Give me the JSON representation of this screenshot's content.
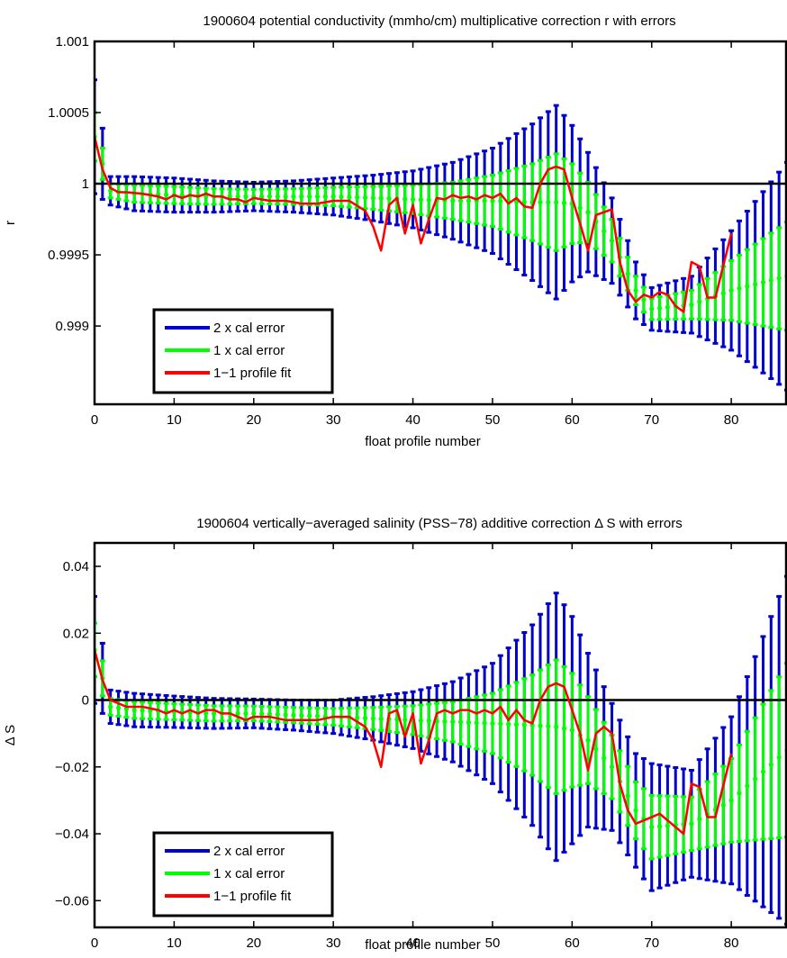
{
  "chart_data": [
    {
      "type": "line",
      "title": "1900604 potential conductivity (mmho/cm) multiplicative correction r with errors",
      "xlabel": "float profile number",
      "ylabel": "r",
      "xlim": [
        0,
        87
      ],
      "ylim": [
        0.99845,
        1.001
      ],
      "xticks": [
        0,
        10,
        20,
        30,
        40,
        50,
        60,
        70,
        80
      ],
      "yticks": [
        0.999,
        0.9995,
        1,
        1.0005,
        1.001
      ],
      "ytick_labels": [
        "0.999",
        "0.9995",
        "1",
        "1.0005",
        "1.001"
      ],
      "reference_line": 1,
      "legend_position": "bottom-left",
      "legend": [
        "2 x cal error",
        "1 x cal error",
        "1−1 profile fit"
      ],
      "fit_color": "#ff0000",
      "err2_color": "#0000cc",
      "err1_color": "#00ff00",
      "error_model": {
        "x": [
          0,
          2,
          5,
          10,
          15,
          20,
          25,
          30,
          35,
          40,
          45,
          50,
          55,
          58,
          60,
          62,
          65,
          68,
          70,
          75,
          80,
          87
        ],
        "center": [
          1.00033,
          0.99995,
          0.99993,
          0.99992,
          0.99991,
          0.99991,
          0.99991,
          0.99991,
          0.9999,
          0.99989,
          0.99988,
          0.99988,
          0.99987,
          0.99987,
          0.99986,
          0.9998,
          0.9996,
          0.99925,
          0.99912,
          0.99915,
          0.99925,
          0.99935
        ],
        "err2": [
          0.0004,
          0.0001,
          0.00012,
          0.00012,
          0.00011,
          0.0001,
          0.00011,
          0.00013,
          0.00016,
          0.0002,
          0.00027,
          0.00037,
          0.00055,
          0.00068,
          0.00055,
          0.00042,
          0.0003,
          0.0002,
          0.00015,
          0.0002,
          0.00042,
          0.0008
        ],
        "err1": [
          0.00017,
          5e-05,
          6e-05,
          6e-05,
          5.5e-05,
          5e-05,
          5.5e-05,
          6.5e-05,
          8e-05,
          0.0001,
          0.00013,
          0.00018,
          0.00027,
          0.00034,
          0.00028,
          0.00021,
          0.00015,
          0.0001,
          7.5e-05,
          0.0001,
          0.00021,
          0.00038
        ]
      },
      "fit": {
        "x": [
          0,
          1,
          2,
          3,
          4,
          6,
          8,
          9,
          10,
          11,
          12,
          13,
          14,
          15,
          16,
          17,
          18,
          19,
          20,
          22,
          24,
          26,
          28,
          30,
          32,
          34,
          35,
          36,
          37,
          38,
          39,
          40,
          41,
          42,
          43,
          44,
          45,
          46,
          47,
          48,
          49,
          50,
          51,
          52,
          53,
          54,
          55,
          56,
          57,
          58,
          59,
          60,
          61,
          62,
          63,
          64,
          65,
          66,
          67,
          68,
          69,
          70,
          71,
          72,
          73,
          74,
          75,
          76,
          77,
          78,
          80
        ],
        "y": [
          1.00033,
          1.0001,
          0.99997,
          0.99994,
          0.99994,
          0.99993,
          0.99991,
          0.99989,
          0.99992,
          0.9999,
          0.99992,
          0.99991,
          0.99993,
          0.99991,
          0.99991,
          0.99989,
          0.99989,
          0.99987,
          0.9999,
          0.99988,
          0.99988,
          0.99986,
          0.99986,
          0.99988,
          0.99988,
          0.99981,
          0.9997,
          0.99953,
          0.99985,
          0.9999,
          0.99965,
          0.99985,
          0.99958,
          0.99975,
          0.9999,
          0.99989,
          0.99992,
          0.9999,
          0.99991,
          0.99989,
          0.99992,
          0.9999,
          0.99993,
          0.99986,
          0.9999,
          0.99984,
          0.99983,
          1.0,
          1.0001,
          1.00012,
          1.0001,
          0.9999,
          0.99972,
          0.99953,
          0.99978,
          0.9998,
          0.99982,
          0.99945,
          0.99925,
          0.99917,
          0.99922,
          0.9992,
          0.99924,
          0.99922,
          0.99914,
          0.9991,
          0.99945,
          0.99942,
          0.9992,
          0.9992,
          0.99965
        ]
      }
    },
    {
      "type": "line",
      "title": "1900604 vertically−averaged salinity (PSS−78) additive correction Δ S with errors",
      "xlabel": "float profile number",
      "ylabel": "Δ S",
      "xlim": [
        0,
        87
      ],
      "ylim": [
        -0.068,
        0.047
      ],
      "xticks": [
        0,
        10,
        20,
        30,
        40,
        50,
        60,
        70,
        80
      ],
      "yticks": [
        -0.06,
        -0.04,
        -0.02,
        0,
        0.02,
        0.04
      ],
      "ytick_labels": [
        "−0.06",
        "−0.04",
        "−0.02",
        "0",
        "0.02",
        "0.04"
      ],
      "reference_line": 0,
      "legend_position": "bottom-left",
      "legend": [
        "2 x cal error",
        "1 x cal error",
        "1−1 profile fit"
      ],
      "fit_color": "#ff0000",
      "err2_color": "#0000cc",
      "err1_color": "#00ff00",
      "error_model": {
        "x": [
          0,
          2,
          5,
          10,
          15,
          20,
          25,
          30,
          35,
          40,
          45,
          50,
          55,
          58,
          60,
          62,
          65,
          68,
          70,
          75,
          80,
          87
        ],
        "center": [
          0.015,
          -0.002,
          -0.003,
          -0.0035,
          -0.004,
          -0.004,
          -0.0045,
          -0.005,
          -0.0055,
          -0.006,
          -0.0065,
          -0.007,
          -0.0075,
          -0.008,
          -0.009,
          -0.012,
          -0.02,
          -0.033,
          -0.038,
          -0.037,
          -0.03,
          -0.015
        ],
        "err2": [
          0.016,
          0.005,
          0.005,
          0.0047,
          0.0045,
          0.0043,
          0.0045,
          0.005,
          0.0065,
          0.0085,
          0.012,
          0.018,
          0.03,
          0.04,
          0.034,
          0.026,
          0.019,
          0.017,
          0.019,
          0.016,
          0.025,
          0.052
        ],
        "err1": [
          0.008,
          0.0025,
          0.0025,
          0.0024,
          0.0023,
          0.0022,
          0.0023,
          0.0025,
          0.0033,
          0.0043,
          0.006,
          0.009,
          0.015,
          0.02,
          0.017,
          0.013,
          0.0095,
          0.0085,
          0.0095,
          0.008,
          0.0125,
          0.026
        ]
      },
      "fit": {
        "x": [
          0,
          1,
          2,
          3,
          4,
          6,
          8,
          9,
          10,
          11,
          12,
          13,
          14,
          15,
          16,
          17,
          18,
          19,
          20,
          22,
          24,
          26,
          28,
          30,
          32,
          34,
          35,
          36,
          37,
          38,
          39,
          40,
          41,
          42,
          43,
          44,
          45,
          46,
          47,
          48,
          49,
          50,
          51,
          52,
          53,
          54,
          55,
          56,
          57,
          58,
          59,
          60,
          61,
          62,
          63,
          64,
          65,
          66,
          67,
          68,
          69,
          70,
          71,
          72,
          73,
          74,
          75,
          76,
          77,
          78,
          80
        ],
        "y": [
          0.015,
          0.006,
          0.0,
          -0.001,
          -0.002,
          -0.002,
          -0.003,
          -0.004,
          -0.003,
          -0.004,
          -0.003,
          -0.004,
          -0.003,
          -0.003,
          -0.004,
          -0.004,
          -0.005,
          -0.006,
          -0.005,
          -0.005,
          -0.006,
          -0.006,
          -0.006,
          -0.005,
          -0.005,
          -0.008,
          -0.012,
          -0.02,
          -0.004,
          -0.003,
          -0.011,
          -0.004,
          -0.019,
          -0.012,
          -0.004,
          -0.003,
          -0.004,
          -0.003,
          -0.003,
          -0.004,
          -0.003,
          -0.004,
          -0.002,
          -0.006,
          -0.003,
          -0.006,
          -0.007,
          0.0,
          0.004,
          0.005,
          0.004,
          -0.003,
          -0.01,
          -0.021,
          -0.01,
          -0.008,
          -0.01,
          -0.025,
          -0.033,
          -0.037,
          -0.036,
          -0.035,
          -0.034,
          -0.036,
          -0.038,
          -0.04,
          -0.025,
          -0.026,
          -0.035,
          -0.035,
          -0.016
        ]
      }
    }
  ]
}
